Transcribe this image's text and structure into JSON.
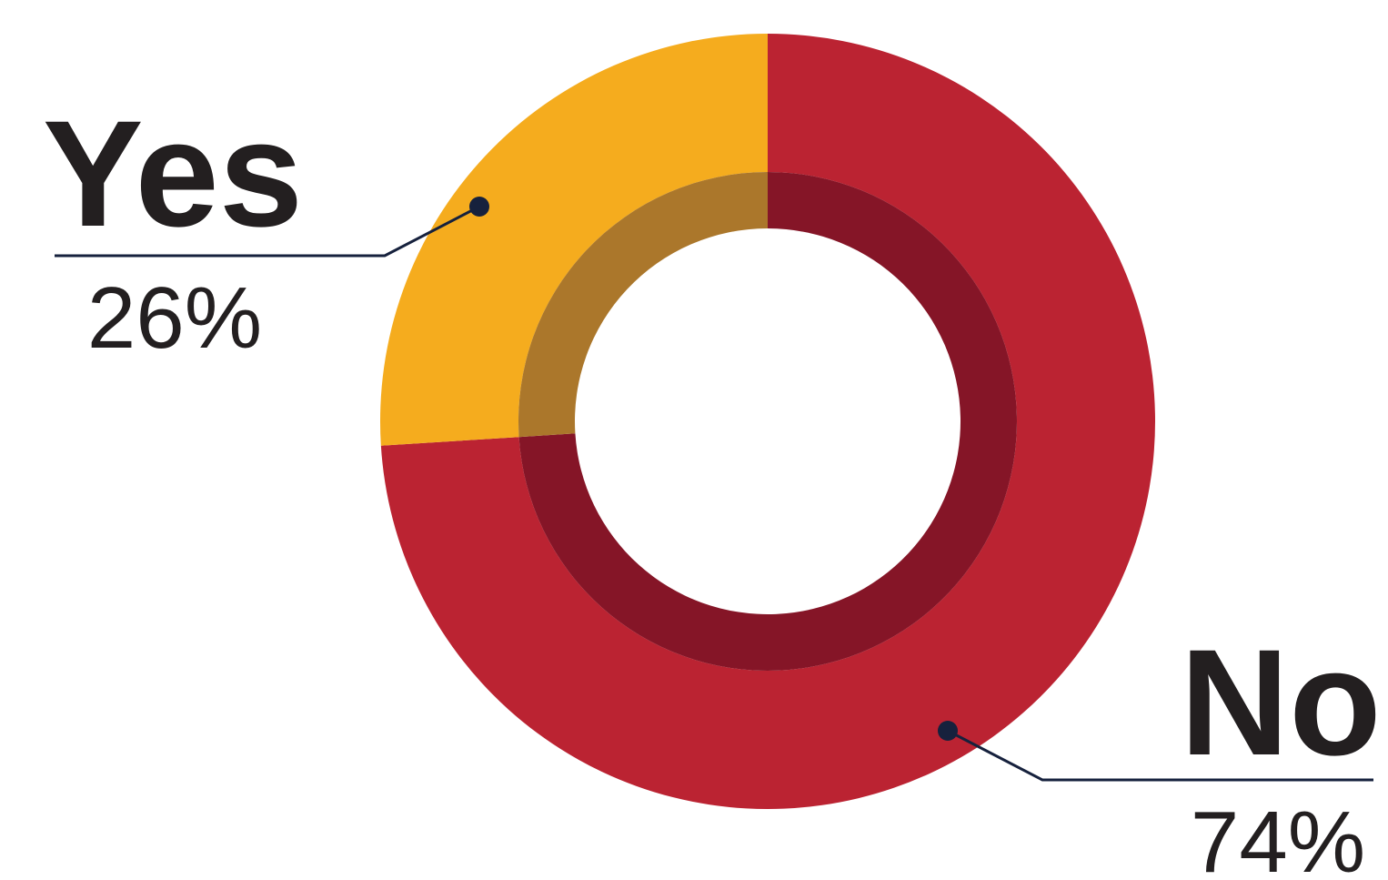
{
  "chart_data": {
    "type": "pie",
    "style": "donut",
    "categories": [
      "Yes",
      "No"
    ],
    "values": [
      26,
      74
    ],
    "value_labels": [
      "26%",
      "74%"
    ],
    "colors": {
      "outer": [
        "#f5ac1e",
        "#bb2332"
      ],
      "inner": [
        "#ab772b",
        "#851527"
      ],
      "leader": "#16213d",
      "text": "#231f20",
      "background": "#ffffff"
    },
    "title": "",
    "legend": "none"
  }
}
